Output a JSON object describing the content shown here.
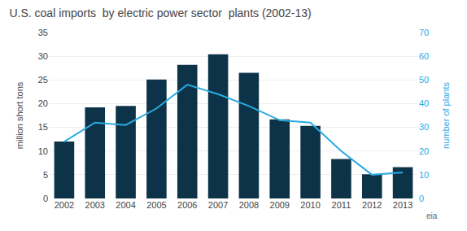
{
  "chart_data": {
    "type": "bar",
    "title": "U.S. coal imports  by electric power sector  plants (2002-13)",
    "ylabel": "million short tons",
    "y2label": "number of plants",
    "categories": [
      "2002",
      "2003",
      "2004",
      "2005",
      "2006",
      "2007",
      "2008",
      "2009",
      "2010",
      "2011",
      "2012",
      "2013"
    ],
    "series": [
      {
        "type": "bar",
        "color": "#0d3349",
        "values": [
          12.0,
          19.2,
          19.5,
          25.1,
          28.2,
          30.4,
          26.5,
          16.7,
          15.3,
          8.3,
          5.1,
          6.6
        ]
      },
      {
        "type": "line",
        "color": "#29abe2",
        "axis": "y2",
        "values": [
          24,
          32,
          31,
          38,
          48,
          44,
          39,
          33,
          32,
          20,
          10,
          11
        ]
      }
    ],
    "ylim": [
      0,
      35
    ],
    "yticks": [
      0,
      5,
      10,
      15,
      20,
      25,
      30,
      35
    ],
    "y2lim": [
      0,
      70
    ],
    "y2ticks": [
      0,
      10,
      20,
      30,
      40,
      50,
      60,
      70
    ],
    "grid": true,
    "annotations": [
      "eia"
    ]
  }
}
